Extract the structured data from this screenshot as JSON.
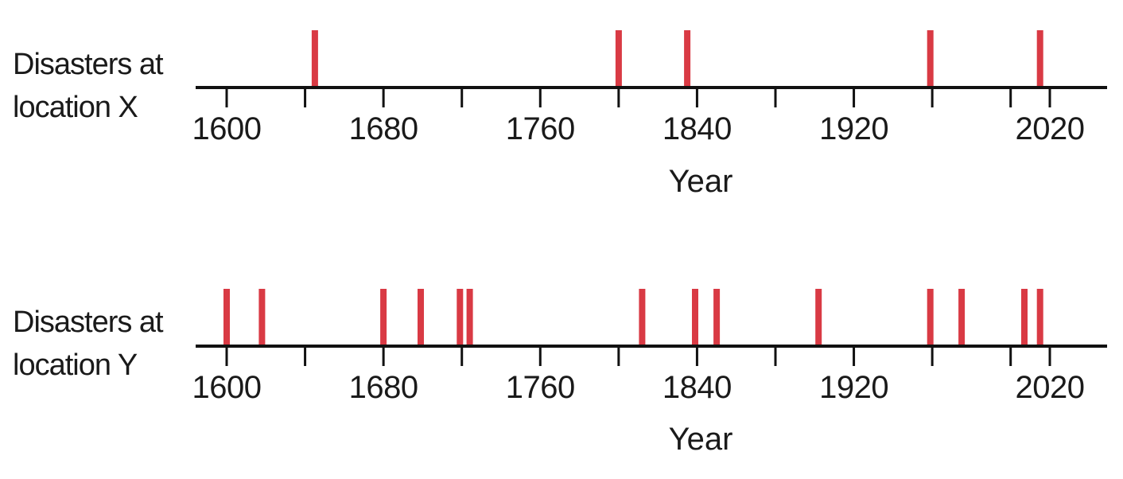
{
  "chart_data": [
    {
      "type": "timeline",
      "ylabel_lines": [
        "Disasters at",
        "location X"
      ],
      "xlabel": "Year",
      "xlim": [
        1600,
        2020
      ],
      "major_ticks": [
        1600,
        1640,
        1680,
        1720,
        1760,
        1800,
        1840,
        1880,
        1920,
        1960,
        2000,
        2020
      ],
      "tick_labels": [
        "1600",
        "1680",
        "1760",
        "1840",
        "1920",
        "2020"
      ],
      "event_color": "#d93a44",
      "events": [
        1645,
        1800,
        1835,
        1959,
        2015
      ]
    },
    {
      "type": "timeline",
      "ylabel_lines": [
        "Disasters at",
        "location Y"
      ],
      "xlabel": "Year",
      "xlim": [
        1600,
        2020
      ],
      "major_ticks": [
        1600,
        1640,
        1680,
        1720,
        1760,
        1800,
        1840,
        1880,
        1920,
        1960,
        2000,
        2020
      ],
      "tick_labels": [
        "1600",
        "1680",
        "1760",
        "1840",
        "1920",
        "2020"
      ],
      "event_color": "#d93a44",
      "events": [
        1600,
        1618,
        1680,
        1699,
        1719,
        1724,
        1812,
        1839,
        1850,
        1902,
        1959,
        1975,
        2007,
        2015
      ]
    }
  ]
}
